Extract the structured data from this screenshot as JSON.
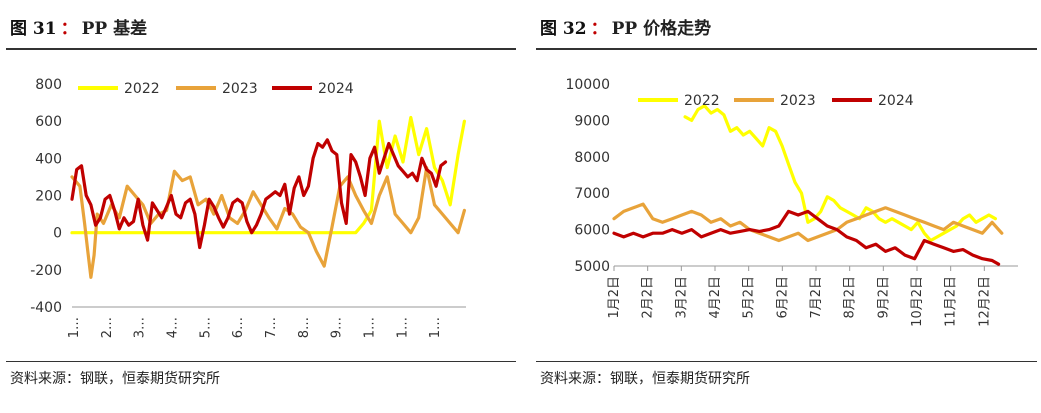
{
  "chart_data": [
    {
      "type": "line",
      "figure_label": "图 31",
      "colon": "：",
      "title": "PP 基差",
      "ylim": [
        -400,
        800
      ],
      "yticks": [
        800,
        600,
        400,
        200,
        0,
        -200,
        -400
      ],
      "xticks": [
        "1…",
        "2…",
        "3…",
        "4…",
        "5…",
        "6…",
        "7…",
        "8…",
        "9…",
        "1…",
        "1…",
        "1…"
      ],
      "x_count": 250,
      "legend_position": "top",
      "series": [
        {
          "name": "2022",
          "color": "#ffff00",
          "x": [
            0,
            10,
            20,
            30,
            40,
            50,
            60,
            70,
            80,
            90,
            100,
            110,
            120,
            130,
            140,
            150,
            160,
            170,
            180,
            185,
            190,
            195,
            200,
            205,
            210,
            215,
            220,
            225,
            230,
            235,
            240,
            245,
            249
          ],
          "values": [
            0,
            0,
            0,
            0,
            0,
            0,
            0,
            0,
            0,
            0,
            0,
            0,
            0,
            0,
            0,
            0,
            0,
            0,
            0,
            50,
            120,
            600,
            350,
            520,
            380,
            620,
            420,
            560,
            350,
            280,
            150,
            420,
            600
          ]
        },
        {
          "name": "2023",
          "color": "#e8a33a",
          "x": [
            0,
            5,
            8,
            10,
            12,
            14,
            16,
            20,
            25,
            30,
            35,
            40,
            45,
            50,
            55,
            60,
            65,
            70,
            75,
            80,
            85,
            90,
            95,
            100,
            105,
            110,
            115,
            120,
            125,
            130,
            135,
            140,
            145,
            150,
            155,
            160,
            165,
            170,
            175,
            180,
            185,
            190,
            195,
            200,
            205,
            210,
            215,
            220,
            225,
            230,
            235,
            240,
            245,
            249
          ],
          "values": [
            300,
            250,
            50,
            -100,
            -240,
            -120,
            100,
            50,
            150,
            80,
            250,
            200,
            150,
            50,
            100,
            120,
            330,
            280,
            300,
            150,
            180,
            100,
            200,
            80,
            50,
            120,
            220,
            150,
            80,
            20,
            130,
            100,
            30,
            0,
            -100,
            -180,
            30,
            250,
            300,
            200,
            120,
            50,
            200,
            300,
            100,
            50,
            0,
            80,
            350,
            150,
            100,
            50,
            0,
            120
          ]
        },
        {
          "name": "2024",
          "color": "#c00000",
          "x": [
            0,
            3,
            6,
            9,
            12,
            15,
            18,
            21,
            24,
            27,
            30,
            33,
            36,
            39,
            42,
            45,
            48,
            51,
            54,
            57,
            60,
            63,
            66,
            69,
            72,
            75,
            78,
            81,
            84,
            87,
            90,
            93,
            96,
            99,
            102,
            105,
            108,
            111,
            114,
            117,
            120,
            123,
            126,
            129,
            132,
            135,
            138,
            141,
            144,
            147,
            150,
            153,
            156,
            159,
            162,
            165,
            168,
            171,
            174,
            177,
            180,
            183,
            186,
            189,
            192,
            195,
            198,
            201,
            204,
            207,
            210,
            213,
            216,
            219,
            222,
            225,
            228,
            231,
            234,
            237
          ],
          "values": [
            180,
            340,
            360,
            200,
            150,
            40,
            80,
            180,
            200,
            120,
            20,
            80,
            40,
            60,
            180,
            40,
            -40,
            160,
            120,
            80,
            140,
            200,
            100,
            80,
            160,
            180,
            100,
            -80,
            40,
            180,
            140,
            80,
            30,
            80,
            160,
            180,
            160,
            60,
            0,
            40,
            100,
            180,
            200,
            220,
            200,
            260,
            100,
            240,
            300,
            200,
            250,
            400,
            480,
            460,
            500,
            440,
            420,
            160,
            50,
            420,
            380,
            300,
            200,
            400,
            460,
            320,
            400,
            480,
            420,
            360,
            330,
            300,
            320,
            280,
            400,
            340,
            320,
            250,
            360,
            380
          ]
        }
      ],
      "source": "资料来源：钢联，恒泰期货研究所"
    },
    {
      "type": "line",
      "figure_label": "图 32",
      "colon": "：",
      "title": "PP 价格走势",
      "ylim": [
        5000,
        10000
      ],
      "yticks": [
        10000,
        9000,
        8000,
        7000,
        6000,
        5000
      ],
      "xticks": [
        "1月2日",
        "2月2日",
        "3月2日",
        "4月2日",
        "5月2日",
        "6月2日",
        "7月2日",
        "8月2日",
        "9月2日",
        "10月2日",
        "11月2日",
        "12月2日"
      ],
      "x_count": 12.5,
      "legend_position": "top",
      "series": [
        {
          "name": "2022",
          "color": "#ffff00",
          "x": [
            2.2,
            2.4,
            2.6,
            2.8,
            3.0,
            3.2,
            3.4,
            3.6,
            3.8,
            4.0,
            4.2,
            4.4,
            4.6,
            4.8,
            5.0,
            5.2,
            5.4,
            5.6,
            5.8,
            6.0,
            6.2,
            6.4,
            6.6,
            6.8,
            7.0,
            7.2,
            7.4,
            7.6,
            7.8,
            8.0,
            8.2,
            8.4,
            8.6,
            8.8,
            9.0,
            9.2,
            9.4,
            9.6,
            9.8,
            10.0,
            10.2,
            10.4,
            10.6,
            10.8,
            11.0,
            11.2,
            11.4,
            11.6,
            11.8
          ],
          "values": [
            9100,
            9000,
            9300,
            9400,
            9200,
            9300,
            9150,
            8700,
            8800,
            8600,
            8700,
            8500,
            8300,
            8800,
            8700,
            8300,
            7800,
            7300,
            7000,
            6200,
            6300,
            6500,
            6900,
            6800,
            6600,
            6500,
            6400,
            6300,
            6600,
            6500,
            6300,
            6200,
            6300,
            6200,
            6100,
            6000,
            6200,
            5900,
            5700,
            5800,
            5900,
            6000,
            6100,
            6300,
            6400,
            6200,
            6300,
            6400,
            6300
          ]
        },
        {
          "name": "2023",
          "color": "#e8a33a",
          "x": [
            0,
            0.3,
            0.6,
            0.9,
            1.2,
            1.5,
            1.8,
            2.1,
            2.4,
            2.7,
            3.0,
            3.3,
            3.6,
            3.9,
            4.2,
            4.5,
            4.8,
            5.1,
            5.4,
            5.7,
            6.0,
            6.3,
            6.6,
            6.9,
            7.2,
            7.5,
            7.8,
            8.1,
            8.4,
            8.7,
            9.0,
            9.3,
            9.6,
            9.9,
            10.2,
            10.5,
            10.8,
            11.1,
            11.4,
            11.7,
            12.0
          ],
          "values": [
            6300,
            6500,
            6600,
            6700,
            6300,
            6200,
            6300,
            6400,
            6500,
            6400,
            6200,
            6300,
            6100,
            6200,
            6000,
            5900,
            5800,
            5700,
            5800,
            5900,
            5700,
            5800,
            5900,
            6000,
            6200,
            6300,
            6400,
            6500,
            6600,
            6500,
            6400,
            6300,
            6200,
            6100,
            6000,
            6200,
            6100,
            6000,
            5900,
            6200,
            5900
          ]
        },
        {
          "name": "2024",
          "color": "#c00000",
          "x": [
            0,
            0.3,
            0.6,
            0.9,
            1.2,
            1.5,
            1.8,
            2.1,
            2.4,
            2.7,
            3.0,
            3.3,
            3.6,
            3.9,
            4.2,
            4.5,
            4.8,
            5.1,
            5.4,
            5.7,
            6.0,
            6.3,
            6.6,
            6.9,
            7.2,
            7.5,
            7.8,
            8.1,
            8.4,
            8.7,
            9.0,
            9.3,
            9.6,
            9.9,
            10.2,
            10.5,
            10.8,
            11.1,
            11.4,
            11.7,
            11.9
          ],
          "values": [
            5900,
            5800,
            5900,
            5800,
            5900,
            5900,
            6000,
            5900,
            6000,
            5800,
            5900,
            6000,
            5900,
            5950,
            6000,
            5950,
            6000,
            6100,
            6500,
            6400,
            6500,
            6300,
            6100,
            6000,
            5800,
            5700,
            5500,
            5600,
            5400,
            5500,
            5300,
            5200,
            5700,
            5600,
            5500,
            5400,
            5450,
            5300,
            5200,
            5150,
            5050
          ]
        }
      ],
      "source": "资料来源：钢联，恒泰期货研究所"
    }
  ]
}
